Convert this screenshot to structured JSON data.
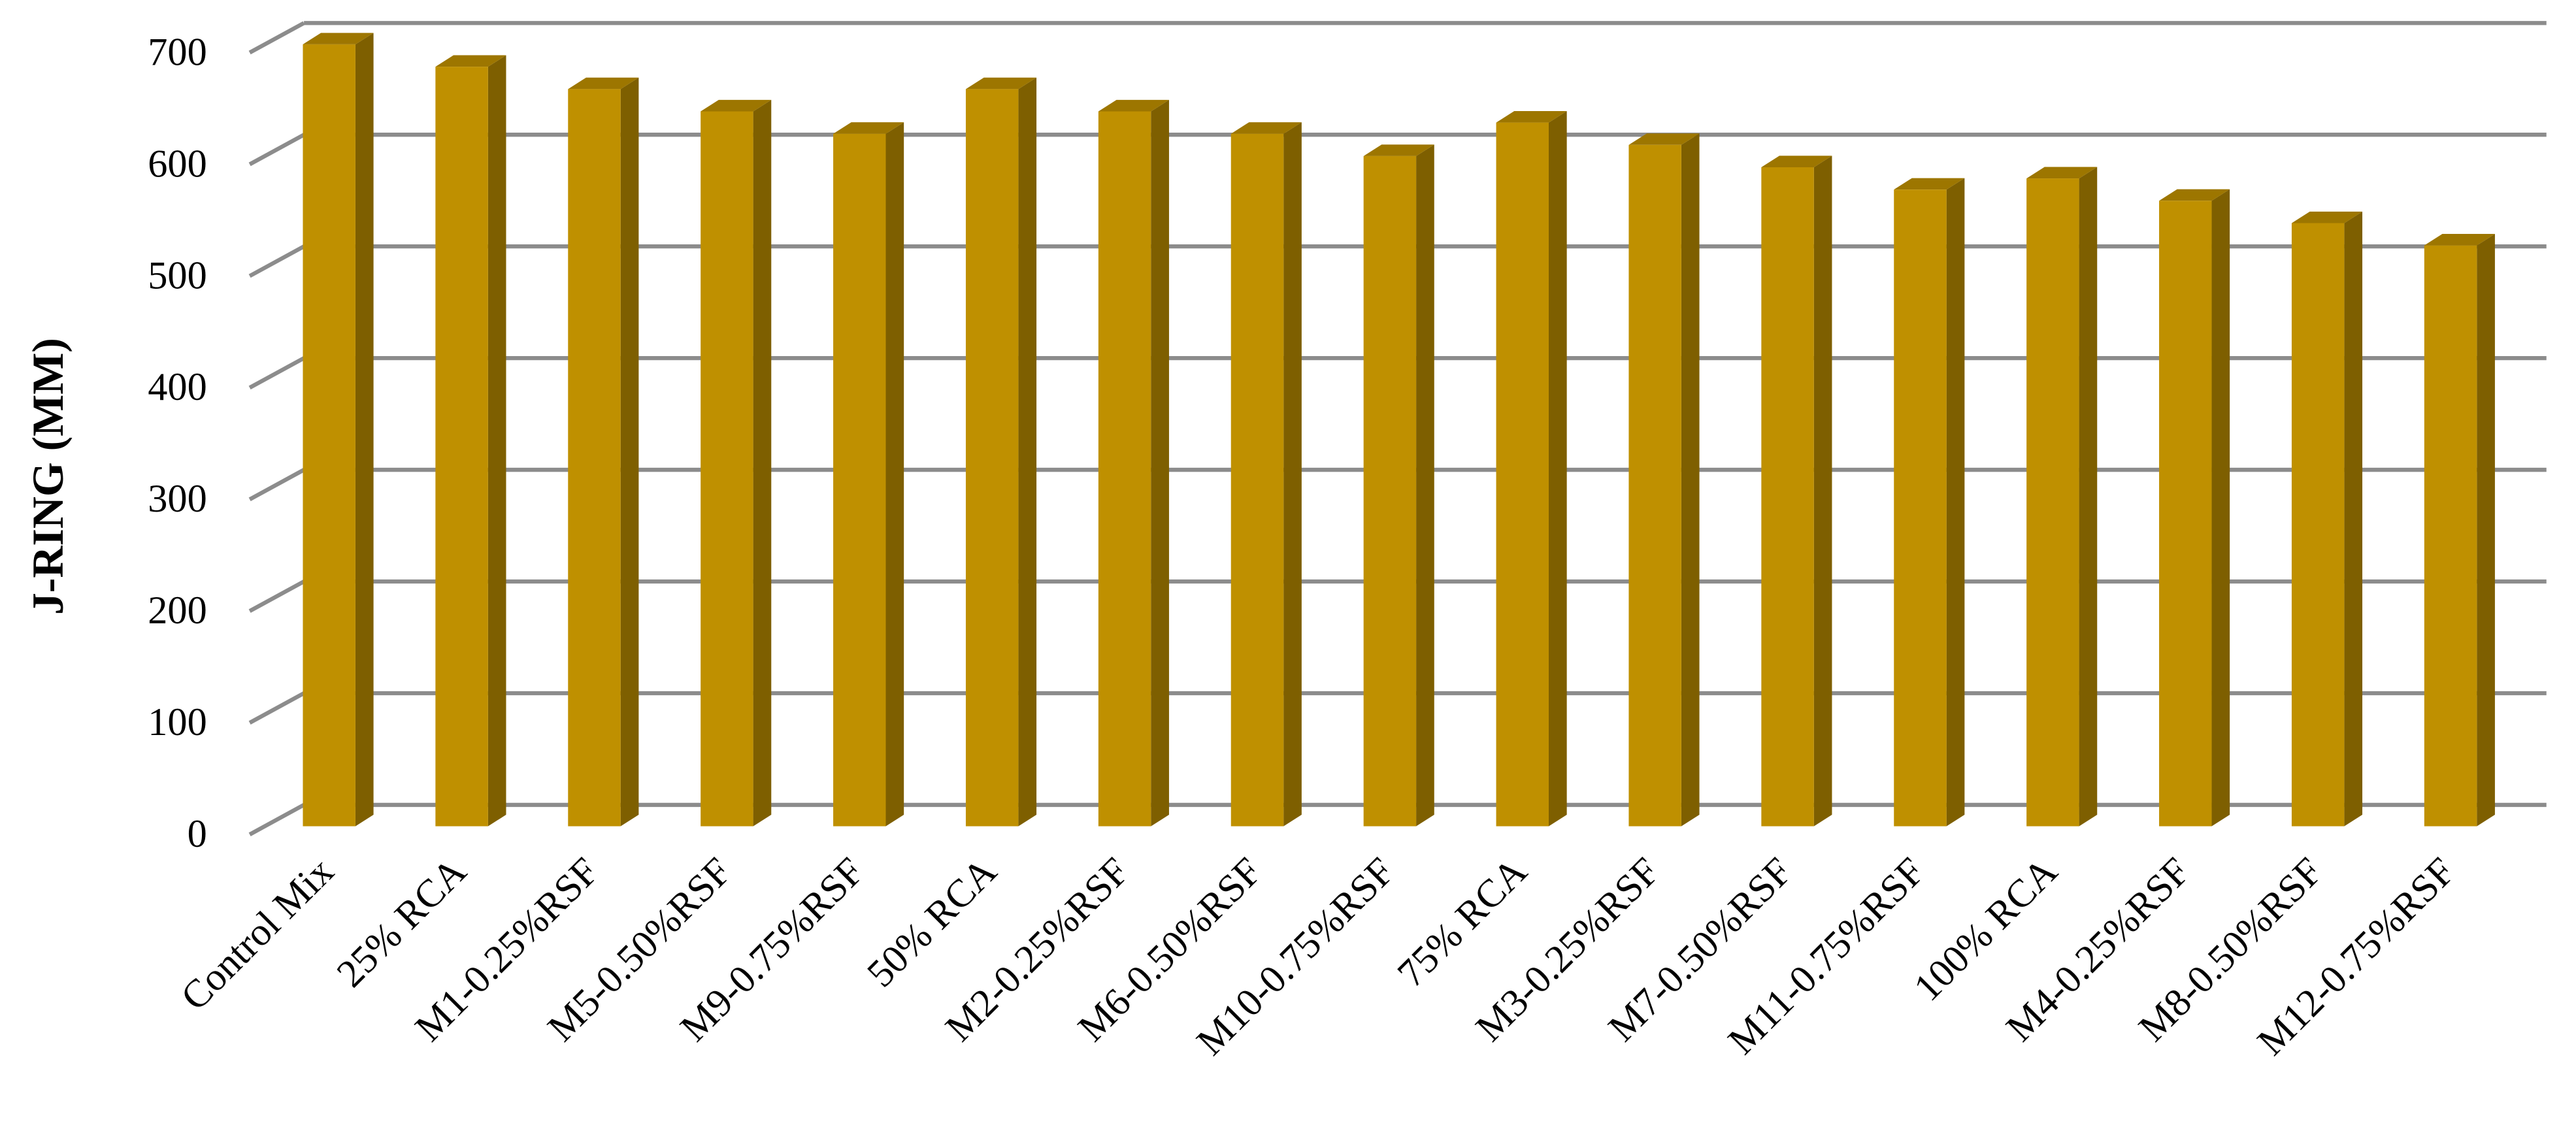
{
  "chart_data": {
    "type": "bar3d",
    "y_label": "J-RING (MM)",
    "categories": [
      "Control Mix",
      "25% RCA",
      "M1-0.25%RSF",
      "M5-0.50%RSF",
      "M9-0.75%RSF",
      "50% RCA",
      "M2-0.25%RSF",
      "M6-0.50%RSF",
      "M10-0.75%RSF",
      "75% RCA",
      "M3-0.25%RSF",
      "M7-0.50%RSF",
      "M11-0.75%RSF",
      "100% RCA",
      "M4-0.25%RSF",
      "M8-0.50%RSF",
      "M12-0.75%RSF"
    ],
    "values": [
      700,
      680,
      660,
      640,
      620,
      660,
      640,
      620,
      600,
      630,
      610,
      590,
      570,
      580,
      560,
      540,
      520
    ],
    "color": "#bf9000",
    "ylim": [
      0,
      700
    ],
    "yticks": [
      0,
      100,
      200,
      300,
      400,
      500,
      600,
      700
    ],
    "grid": true
  }
}
